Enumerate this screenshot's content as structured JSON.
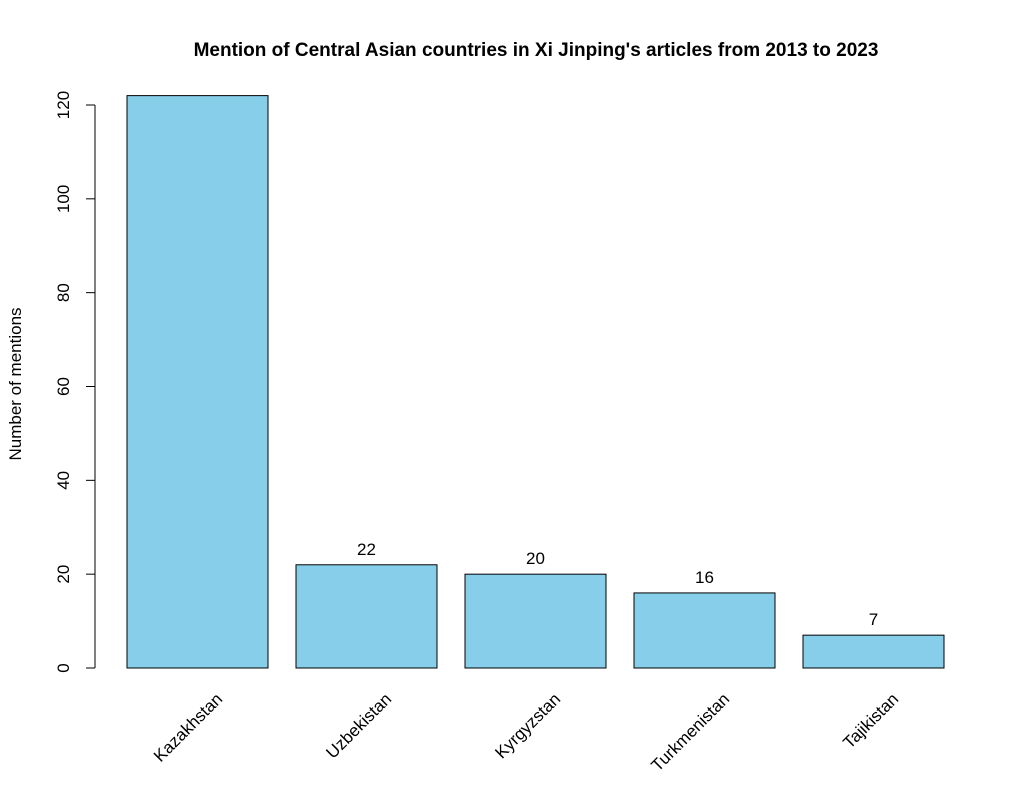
{
  "chart_data": {
    "type": "bar",
    "title": "Mention of Central Asian countries in Xi Jinping's articles from 2013 to 2023",
    "xlabel": "",
    "ylabel": "Number of mentions",
    "categories": [
      "Kazakhstan",
      "Uzbekistan",
      "Kyrgyzstan",
      "Turkmenistan",
      "Tajikistan"
    ],
    "values": [
      122,
      22,
      20,
      16,
      7
    ],
    "data_labels": [
      "",
      "22",
      "20",
      "16",
      "7"
    ],
    "ylim": [
      0,
      120
    ],
    "yticks": [
      0,
      20,
      40,
      60,
      80,
      100,
      120
    ],
    "bar_color": "#87ceeb",
    "bar_border_color": "#000000",
    "grid": false,
    "legend": "none"
  }
}
